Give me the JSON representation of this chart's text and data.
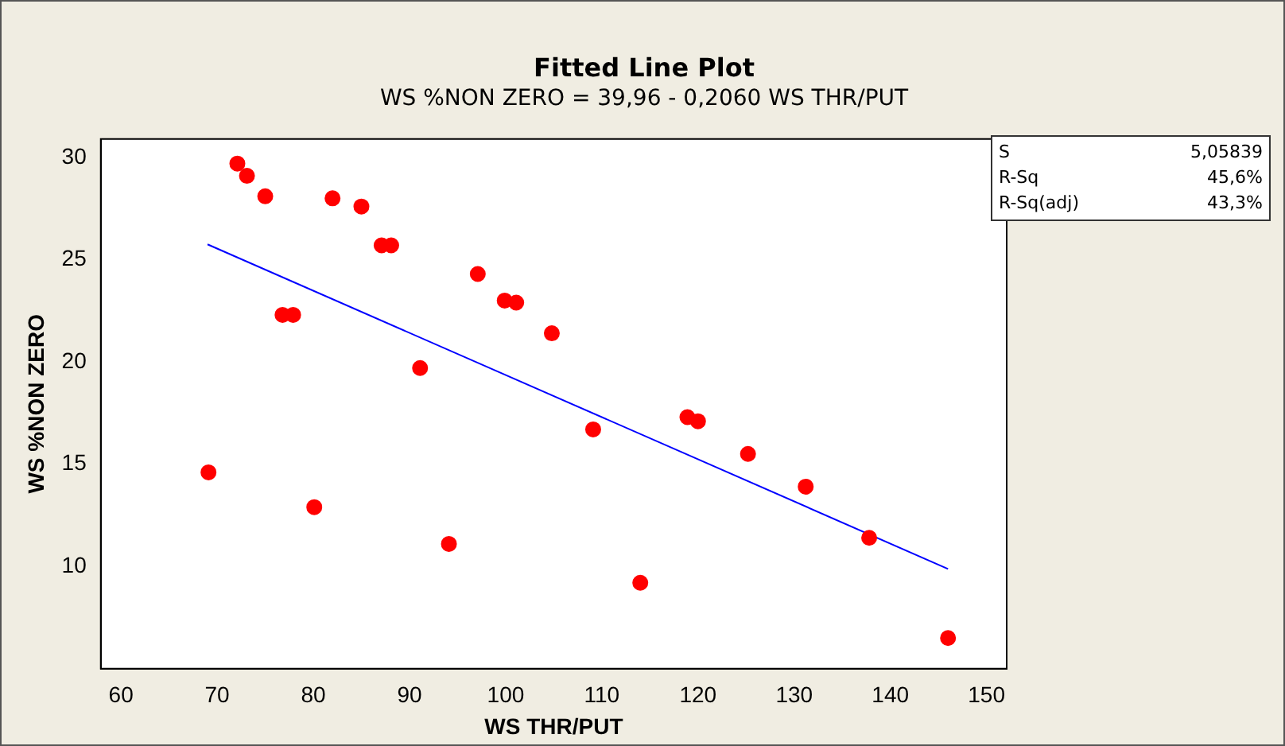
{
  "chart_data": {
    "type": "scatter",
    "title": "Fitted Line Plot",
    "subtitle": "WS %NON ZERO =  39,96 - 0,2060 WS THR/PUT",
    "xlabel": "WS THR/PUT",
    "ylabel": "WS %NON ZERO",
    "xlim": [
      57.9,
      152.1
    ],
    "ylim": [
      5,
      30.9
    ],
    "xticks": [
      60,
      70,
      80,
      90,
      100,
      110,
      120,
      130,
      140,
      150
    ],
    "yticks": [
      10,
      15,
      20,
      25,
      30
    ],
    "grid": false,
    "legend": false,
    "series": [
      {
        "color": "#ff0000",
        "marker": "circle",
        "x": [
          69.1,
          72.1,
          73.1,
          75.0,
          76.8,
          77.9,
          80.1,
          82.0,
          85.0,
          87.1,
          88.1,
          91.1,
          94.1,
          97.1,
          99.9,
          101.1,
          104.8,
          109.1,
          114.0,
          118.9,
          120.0,
          125.2,
          131.2,
          137.8,
          146.0
        ],
        "values": [
          14.6,
          29.7,
          29.1,
          28.1,
          22.3,
          22.3,
          12.9,
          28.0,
          27.6,
          25.7,
          25.7,
          19.7,
          11.1,
          24.3,
          23.0,
          22.9,
          21.4,
          16.7,
          9.2,
          17.3,
          17.1,
          15.5,
          13.9,
          11.4,
          6.5
        ]
      },
      {
        "type": "line",
        "color": "#0000ff",
        "x": [
          69,
          146
        ],
        "values": [
          25.75,
          9.88
        ]
      }
    ],
    "annotations": [
      "S 5,05839",
      "R-Sq 45,6%",
      "R-Sq(adj) 43,3%"
    ]
  }
}
